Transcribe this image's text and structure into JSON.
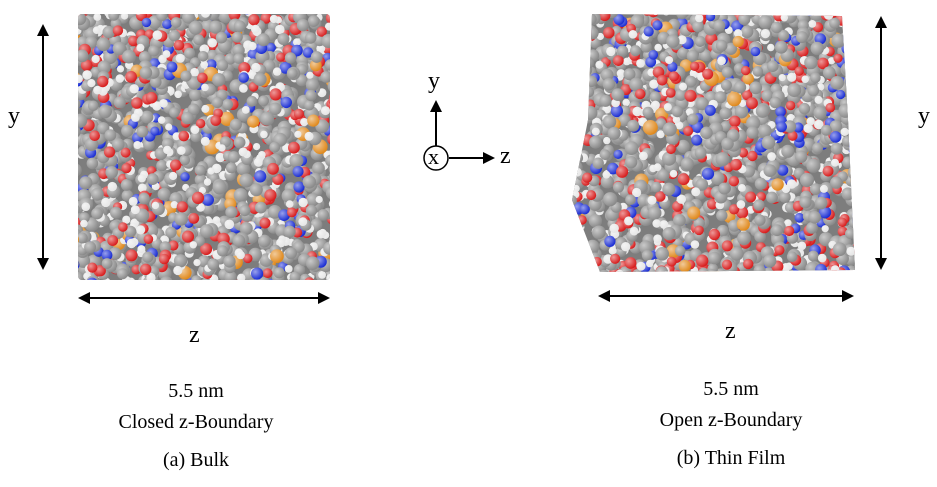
{
  "bulk_panel": {
    "y_label": "y",
    "z_label": "z",
    "size_label": "5.5 nm",
    "boundary_label": "Closed z-Boundary",
    "caption": "(a) Bulk"
  },
  "film_panel": {
    "y_label": "y",
    "z_label": "z",
    "size_label": "5.5 nm",
    "boundary_label": "Open z-Boundary",
    "caption": "(b) Thin Film"
  },
  "coordinate_axes": {
    "y_label": "y",
    "x_label": "x",
    "z_label": "z"
  },
  "atom_colors": {
    "carbon": "#8a8a8a",
    "hydrogen": "#e6e6e6",
    "oxygen": "#d81e1e",
    "nitrogen": "#1c2fd4",
    "sulfur": "#e08a1e"
  }
}
